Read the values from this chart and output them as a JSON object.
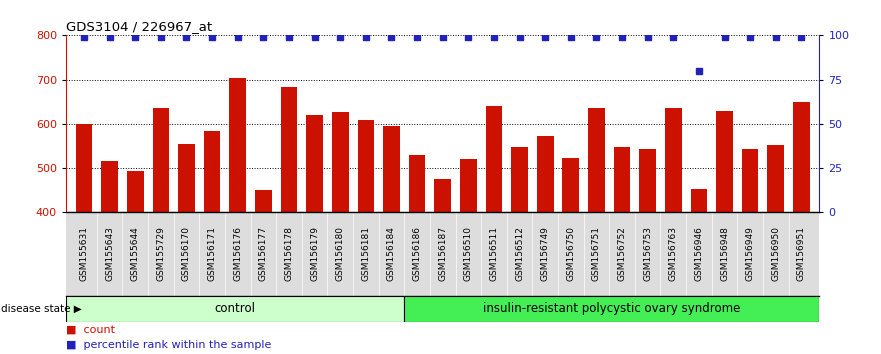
{
  "title": "GDS3104 / 226967_at",
  "samples": [
    "GSM155631",
    "GSM155643",
    "GSM155644",
    "GSM155729",
    "GSM156170",
    "GSM156171",
    "GSM156176",
    "GSM156177",
    "GSM156178",
    "GSM156179",
    "GSM156180",
    "GSM156181",
    "GSM156184",
    "GSM156186",
    "GSM156187",
    "GSM156510",
    "GSM156511",
    "GSM156512",
    "GSM156749",
    "GSM156750",
    "GSM156751",
    "GSM156752",
    "GSM156753",
    "GSM156763",
    "GSM156946",
    "GSM156948",
    "GSM156949",
    "GSM156950",
    "GSM156951"
  ],
  "counts": [
    600,
    517,
    493,
    635,
    555,
    585,
    703,
    450,
    683,
    620,
    627,
    608,
    595,
    530,
    475,
    520,
    640,
    548,
    572,
    524,
    637,
    547,
    543,
    637,
    453,
    630,
    543,
    553,
    650
  ],
  "percentile_ranks": [
    99,
    99,
    99,
    99,
    99,
    99,
    99,
    99,
    99,
    99,
    99,
    99,
    99,
    99,
    99,
    99,
    99,
    99,
    99,
    99,
    99,
    99,
    99,
    99,
    80,
    99,
    99,
    99,
    99
  ],
  "bar_color": "#CC1100",
  "dot_color": "#2222BB",
  "ylim_left": [
    400,
    800
  ],
  "ylim_right": [
    0,
    100
  ],
  "yticks_left": [
    400,
    500,
    600,
    700,
    800
  ],
  "yticks_right": [
    0,
    25,
    50,
    75,
    100
  ],
  "group_labels": [
    "control",
    "insulin-resistant polycystic ovary syndrome"
  ],
  "ctrl_count": 13,
  "ins_count": 16,
  "ctrl_color": "#CCFFCC",
  "ins_color": "#44EE55",
  "xtick_bg": "#DDDDDD",
  "plot_bg": "#FFFFFF",
  "title_fontsize": 9.5,
  "tick_fontsize": 6.5
}
